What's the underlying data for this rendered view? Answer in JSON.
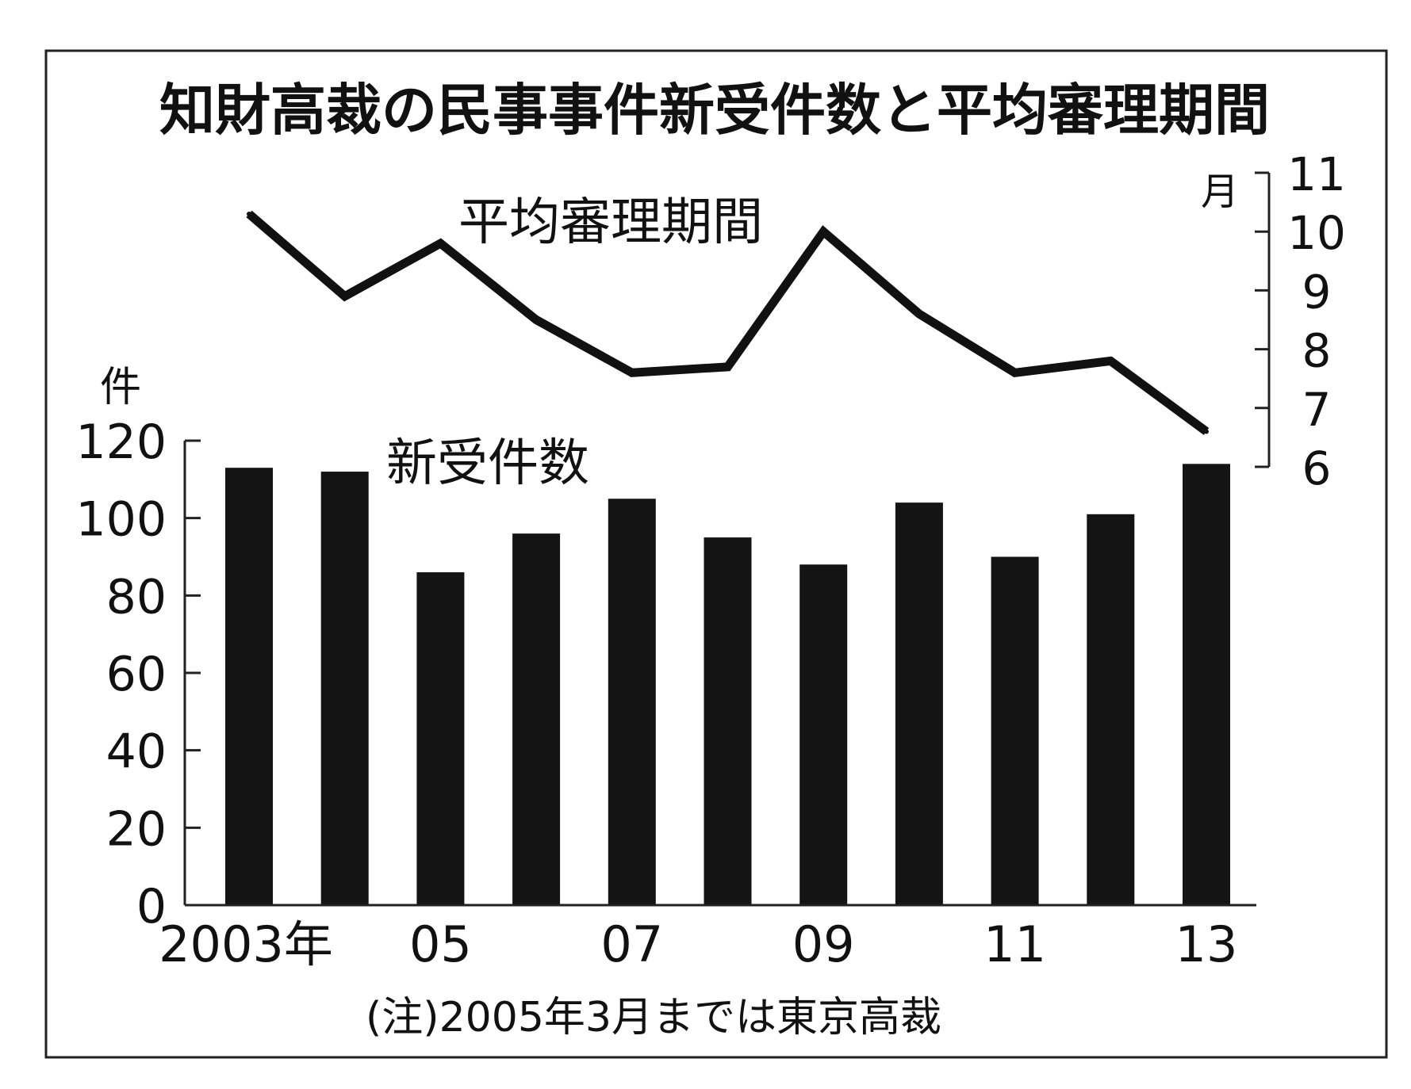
{
  "chart_data": {
    "type": "bar+line",
    "title": "知財高裁の民事事件新受件数と平均審理期間",
    "note": "(注)2005年3月までは東京高裁",
    "x_tick_labels": [
      "2003年",
      "05",
      "07",
      "09",
      "11",
      "13"
    ],
    "categories": [
      "2003",
      "2004",
      "2005",
      "2006",
      "2007",
      "2008",
      "2009",
      "2010",
      "2011",
      "2012",
      "2013"
    ],
    "left_axis": {
      "unit_label": "件",
      "ylim": [
        0,
        120
      ],
      "ticks": [
        0,
        20,
        40,
        60,
        80,
        100,
        120
      ]
    },
    "right_axis": {
      "unit_label": "月",
      "ylim": [
        6,
        11
      ],
      "ticks": [
        6,
        7,
        8,
        9,
        10,
        11
      ]
    },
    "series": [
      {
        "name": "新受件数",
        "type": "bar",
        "axis": "left",
        "values": [
          113,
          112,
          86,
          96,
          105,
          95,
          88,
          104,
          90,
          101,
          114
        ]
      },
      {
        "name": "平均審理期間",
        "type": "line",
        "axis": "right",
        "values": [
          10.3,
          8.9,
          9.8,
          8.5,
          7.6,
          7.7,
          10.0,
          8.6,
          7.6,
          7.8,
          6.6
        ]
      }
    ],
    "colors": {
      "bar": "#141414",
      "line": "#111111",
      "frame": "#222222",
      "background": "#ffffff"
    },
    "grid": false
  }
}
